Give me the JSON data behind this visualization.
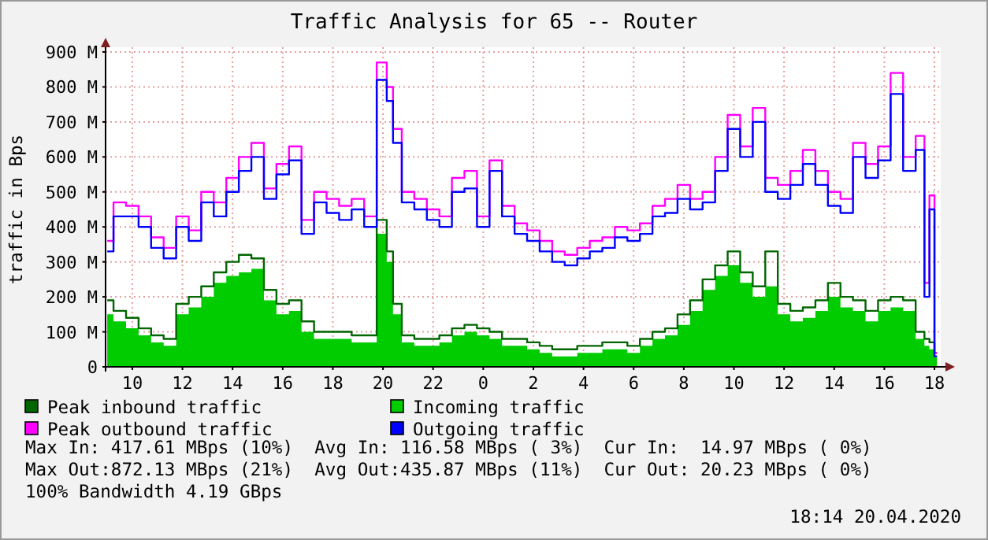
{
  "chart_data": {
    "type": "step",
    "title": "Traffic Analysis for 65 -- Router",
    "ylabel": "traffic in Bps",
    "x": [
      "2020-04-19T09:00",
      "2020-04-19T09:30",
      "2020-04-19T10:00",
      "2020-04-19T10:30",
      "2020-04-19T11:00",
      "2020-04-19T11:30",
      "2020-04-19T12:00",
      "2020-04-19T12:30",
      "2020-04-19T13:00",
      "2020-04-19T13:30",
      "2020-04-19T14:00",
      "2020-04-19T14:30",
      "2020-04-19T15:00",
      "2020-04-19T15:30",
      "2020-04-19T16:00",
      "2020-04-19T16:30",
      "2020-04-19T17:00",
      "2020-04-19T17:30",
      "2020-04-19T18:00",
      "2020-04-19T18:30",
      "2020-04-19T19:00",
      "2020-04-19T19:30",
      "2020-04-19T20:00",
      "2020-04-19T20:18",
      "2020-04-19T20:30",
      "2020-04-19T21:00",
      "2020-04-19T21:30",
      "2020-04-19T22:00",
      "2020-04-19T22:30",
      "2020-04-19T23:00",
      "2020-04-19T23:30",
      "2020-04-20T00:00",
      "2020-04-20T00:30",
      "2020-04-20T01:00",
      "2020-04-20T01:30",
      "2020-04-20T02:00",
      "2020-04-20T02:30",
      "2020-04-20T03:00",
      "2020-04-20T03:30",
      "2020-04-20T04:00",
      "2020-04-20T04:30",
      "2020-04-20T05:00",
      "2020-04-20T05:30",
      "2020-04-20T06:00",
      "2020-04-20T06:30",
      "2020-04-20T07:00",
      "2020-04-20T07:30",
      "2020-04-20T08:00",
      "2020-04-20T08:30",
      "2020-04-20T09:00",
      "2020-04-20T09:30",
      "2020-04-20T10:00",
      "2020-04-20T10:30",
      "2020-04-20T11:00",
      "2020-04-20T11:30",
      "2020-04-20T12:00",
      "2020-04-20T12:30",
      "2020-04-20T13:00",
      "2020-04-20T13:30",
      "2020-04-20T14:00",
      "2020-04-20T14:30",
      "2020-04-20T15:00",
      "2020-04-20T15:30",
      "2020-04-20T16:00",
      "2020-04-20T16:30",
      "2020-04-20T17:00",
      "2020-04-20T17:30",
      "2020-04-20T17:42",
      "2020-04-20T17:54",
      "2020-04-20T18:06"
    ],
    "xlim": [
      "2020-04-19T08:56",
      "2020-04-20T18:15"
    ],
    "xticks": [
      {
        "value": "2020-04-19T10:00",
        "label": "10"
      },
      {
        "value": "2020-04-19T12:00",
        "label": "12"
      },
      {
        "value": "2020-04-19T14:00",
        "label": "14"
      },
      {
        "value": "2020-04-19T16:00",
        "label": "16"
      },
      {
        "value": "2020-04-19T18:00",
        "label": "18"
      },
      {
        "value": "2020-04-19T20:00",
        "label": "20"
      },
      {
        "value": "2020-04-19T22:00",
        "label": "22"
      },
      {
        "value": "2020-04-20T00:00",
        "label": "0"
      },
      {
        "value": "2020-04-20T02:00",
        "label": "2"
      },
      {
        "value": "2020-04-20T04:00",
        "label": "4"
      },
      {
        "value": "2020-04-20T06:00",
        "label": "6"
      },
      {
        "value": "2020-04-20T08:00",
        "label": "8"
      },
      {
        "value": "2020-04-20T10:00",
        "label": "10"
      },
      {
        "value": "2020-04-20T12:00",
        "label": "12"
      },
      {
        "value": "2020-04-20T14:00",
        "label": "14"
      },
      {
        "value": "2020-04-20T16:00",
        "label": "16"
      },
      {
        "value": "2020-04-20T18:00",
        "label": "18"
      }
    ],
    "ylim": [
      0,
      900
    ],
    "yticks": [
      0,
      {
        "value": 100,
        "label": "100 M"
      },
      {
        "value": 200,
        "label": "200 M"
      },
      {
        "value": 300,
        "label": "300 M"
      },
      {
        "value": 400,
        "label": "400 M"
      },
      {
        "value": 500,
        "label": "500 M"
      },
      {
        "value": 600,
        "label": "600 M"
      },
      {
        "value": 700,
        "label": "700 M"
      },
      {
        "value": 800,
        "label": "800 M"
      },
      {
        "value": 900,
        "label": "900 M"
      }
    ],
    "grid": true,
    "legend": "bottom",
    "series": [
      {
        "name": "Peak inbound traffic",
        "color": "#006600",
        "values": [
          190,
          160,
          140,
          110,
          90,
          80,
          180,
          200,
          230,
          270,
          300,
          320,
          310,
          220,
          180,
          190,
          130,
          100,
          100,
          100,
          90,
          90,
          420,
          330,
          180,
          90,
          80,
          80,
          90,
          110,
          120,
          110,
          100,
          80,
          80,
          70,
          60,
          50,
          50,
          60,
          60,
          70,
          70,
          60,
          80,
          100,
          110,
          150,
          190,
          250,
          290,
          330,
          270,
          230,
          330,
          180,
          160,
          170,
          190,
          240,
          200,
          190,
          160,
          190,
          200,
          190,
          100,
          80,
          70,
          40
        ]
      },
      {
        "name": "Incoming traffic",
        "type": "area",
        "color": "#00cc00",
        "values": [
          150,
          130,
          110,
          90,
          70,
          60,
          150,
          170,
          200,
          240,
          260,
          270,
          280,
          190,
          150,
          160,
          100,
          80,
          80,
          80,
          70,
          70,
          380,
          300,
          150,
          70,
          60,
          60,
          70,
          90,
          100,
          90,
          80,
          60,
          60,
          50,
          40,
          30,
          30,
          40,
          40,
          50,
          50,
          40,
          60,
          80,
          90,
          120,
          160,
          220,
          260,
          290,
          240,
          200,
          230,
          150,
          130,
          140,
          160,
          200,
          170,
          160,
          130,
          160,
          170,
          160,
          80,
          60,
          50,
          30
        ]
      },
      {
        "name": "Peak outbound traffic",
        "color": "#ff00ff",
        "values": [
          360,
          470,
          460,
          430,
          370,
          340,
          430,
          390,
          500,
          470,
          540,
          600,
          640,
          510,
          580,
          630,
          420,
          500,
          480,
          460,
          480,
          430,
          870,
          800,
          680,
          500,
          480,
          450,
          430,
          540,
          560,
          430,
          590,
          460,
          410,
          390,
          360,
          330,
          320,
          340,
          360,
          370,
          400,
          390,
          410,
          460,
          480,
          520,
          480,
          500,
          600,
          720,
          630,
          740,
          540,
          520,
          560,
          620,
          560,
          500,
          480,
          640,
          580,
          630,
          840,
          600,
          660,
          240,
          490,
          40
        ]
      },
      {
        "name": "Outgoing traffic",
        "color": "#0000ff",
        "values": [
          330,
          430,
          430,
          400,
          340,
          310,
          400,
          360,
          470,
          430,
          500,
          560,
          600,
          480,
          550,
          590,
          380,
          470,
          440,
          420,
          450,
          400,
          820,
          760,
          640,
          470,
          450,
          420,
          400,
          500,
          510,
          400,
          560,
          430,
          380,
          360,
          330,
          300,
          290,
          310,
          330,
          340,
          370,
          360,
          380,
          430,
          440,
          480,
          450,
          470,
          560,
          680,
          600,
          700,
          500,
          480,
          520,
          580,
          520,
          460,
          440,
          600,
          540,
          590,
          780,
          560,
          620,
          200,
          450,
          30
        ]
      }
    ],
    "annotations": [
      "Max In: 417.61 MBps (10%)  Avg In: 116.58 MBps ( 3%)  Cur In:  14.97 MBps ( 0%)",
      "Max Out:872.13 MBps (21%)  Avg Out:435.87 MBps (11%)  Cur Out: 20.23 MBps ( 0%)",
      "100% Bandwidth 4.19 GBps",
      "18:14 20.04.2020"
    ]
  }
}
